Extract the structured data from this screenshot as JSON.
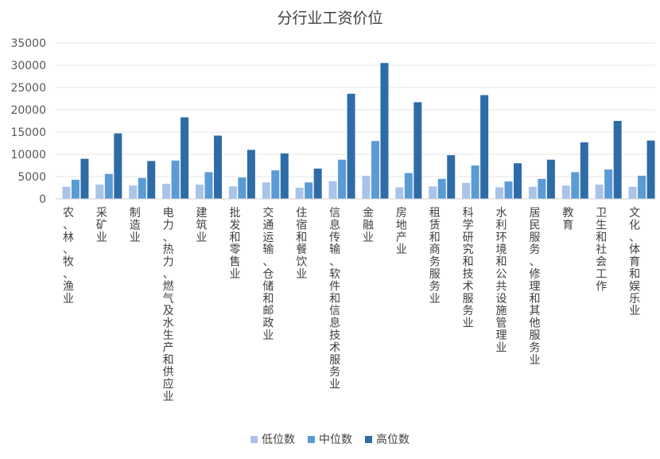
{
  "chart_data": {
    "type": "bar",
    "title": "分行业工资价位",
    "xlabel": "",
    "ylabel": "",
    "ylim": [
      0,
      35000
    ],
    "yticks": [
      "0",
      "5000",
      "10000",
      "15000",
      "20000",
      "25000",
      "30000",
      "35000"
    ],
    "grid": true,
    "legend_position": "bottom",
    "categories": [
      "农、林、牧、渔业",
      "采矿业",
      "制造业",
      "电力、热力、燃气及水生产和供应业",
      "建筑业",
      "批发和零售业",
      "交通运输、仓储和邮政业",
      "住宿和餐饮业",
      "信息传输、软件和信息技术服务业",
      "金融业",
      "房地产业",
      "租赁和商务服务业",
      "科学研究和技术服务业",
      "水利环境和公共设施管理业",
      "居民服务、修理和其他服务业",
      "教育",
      "卫生和社会工作",
      "文化、体育和娱乐业"
    ],
    "series": [
      {
        "name": "低位数",
        "color": "#a9c4e8",
        "values": [
          2700,
          3200,
          3000,
          3400,
          3200,
          2800,
          3700,
          2500,
          4000,
          5200,
          2600,
          2800,
          3600,
          2600,
          2700,
          3000,
          3200,
          2700
        ]
      },
      {
        "name": "中位数",
        "color": "#5b9bd5",
        "values": [
          4300,
          5600,
          4700,
          8600,
          6000,
          4800,
          6400,
          3700,
          8800,
          13000,
          5800,
          4500,
          7500,
          3900,
          4500,
          6000,
          6600,
          5200
        ]
      },
      {
        "name": "高位数",
        "color": "#2e6ca8",
        "values": [
          9000,
          14700,
          8500,
          18300,
          14200,
          11000,
          10200,
          6800,
          23600,
          30500,
          21700,
          9800,
          23300,
          8000,
          8800,
          12700,
          17500,
          13100
        ]
      }
    ]
  }
}
